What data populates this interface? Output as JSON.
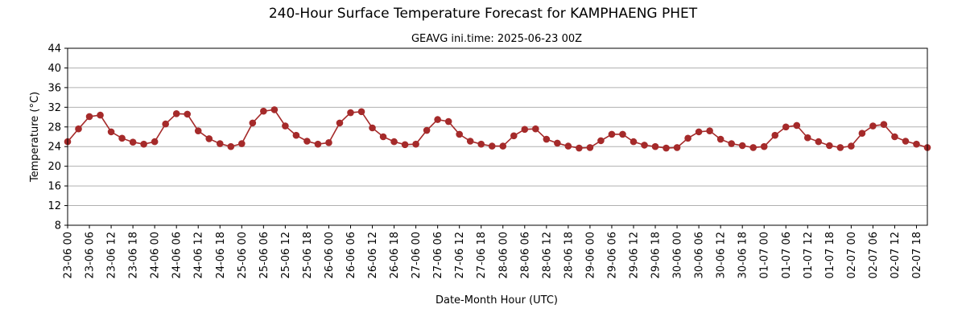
{
  "chart_data": {
    "type": "line",
    "title": "240-Hour Surface Temperature Forecast for KAMPHAENG PHET",
    "subtitle": "GEAVG ini.time: 2025-06-23 00Z",
    "xlabel": "Date-Month Hour (UTC)",
    "ylabel": "Temperature (°C)",
    "ylim": [
      8,
      44
    ],
    "yticks": [
      8,
      12,
      16,
      20,
      24,
      28,
      32,
      36,
      40,
      44
    ],
    "grid": "horizontal",
    "color": "#a52a2a",
    "x": [
      "23-06 00",
      "23-06 03",
      "23-06 06",
      "23-06 09",
      "23-06 12",
      "23-06 15",
      "23-06 18",
      "23-06 21",
      "24-06 00",
      "24-06 03",
      "24-06 06",
      "24-06 09",
      "24-06 12",
      "24-06 15",
      "24-06 18",
      "24-06 21",
      "25-06 00",
      "25-06 03",
      "25-06 06",
      "25-06 09",
      "25-06 12",
      "25-06 15",
      "25-06 18",
      "25-06 21",
      "26-06 00",
      "26-06 03",
      "26-06 06",
      "26-06 09",
      "26-06 12",
      "26-06 15",
      "26-06 18",
      "26-06 21",
      "27-06 00",
      "27-06 03",
      "27-06 06",
      "27-06 09",
      "27-06 12",
      "27-06 15",
      "27-06 18",
      "27-06 21",
      "28-06 00",
      "28-06 03",
      "28-06 06",
      "28-06 09",
      "28-06 12",
      "28-06 15",
      "28-06 18",
      "28-06 21",
      "29-06 00",
      "29-06 03",
      "29-06 06",
      "29-06 09",
      "29-06 12",
      "29-06 15",
      "29-06 18",
      "29-06 21",
      "30-06 00",
      "30-06 03",
      "30-06 06",
      "30-06 09",
      "30-06 12",
      "30-06 15",
      "30-06 18",
      "30-06 21",
      "01-07 00",
      "01-07 03",
      "01-07 06",
      "01-07 09",
      "01-07 12",
      "01-07 15",
      "01-07 18",
      "01-07 21",
      "02-07 00",
      "02-07 03",
      "02-07 06",
      "02-07 09",
      "02-07 12",
      "02-07 15",
      "02-07 18",
      "02-07 21"
    ],
    "xticks": [
      "23-06 00",
      "23-06 06",
      "23-06 12",
      "23-06 18",
      "24-06 00",
      "24-06 06",
      "24-06 12",
      "24-06 18",
      "25-06 00",
      "25-06 06",
      "25-06 12",
      "25-06 18",
      "26-06 00",
      "26-06 06",
      "26-06 12",
      "26-06 18",
      "27-06 00",
      "27-06 06",
      "27-06 12",
      "27-06 18",
      "28-06 00",
      "28-06 06",
      "28-06 12",
      "28-06 18",
      "29-06 00",
      "29-06 06",
      "29-06 12",
      "29-06 18",
      "30-06 00",
      "30-06 06",
      "30-06 12",
      "30-06 18",
      "01-07 00",
      "01-07 06",
      "01-07 12",
      "01-07 18",
      "02-07 00",
      "02-07 06",
      "02-07 12",
      "02-07 18"
    ],
    "series": [
      {
        "values": [
          25.0,
          27.6,
          30.1,
          30.4,
          27.0,
          25.7,
          24.9,
          24.5,
          25.0,
          28.6,
          30.7,
          30.6,
          27.2,
          25.6,
          24.6,
          24.0,
          24.6,
          28.8,
          31.2,
          31.5,
          28.2,
          26.3,
          25.1,
          24.5,
          24.8,
          28.8,
          30.9,
          31.1,
          27.8,
          26.0,
          25.0,
          24.4,
          24.5,
          27.3,
          29.5,
          29.1,
          26.5,
          25.1,
          24.5,
          24.1,
          24.1,
          26.2,
          27.5,
          27.6,
          25.5,
          24.7,
          24.1,
          23.7,
          23.8,
          25.2,
          26.5,
          26.5,
          25.0,
          24.3,
          24.0,
          23.7,
          23.8,
          25.7,
          27.0,
          27.2,
          25.5,
          24.6,
          24.2,
          23.8,
          24.0,
          26.3,
          28.0,
          28.3,
          25.8,
          25.0,
          24.2,
          23.8,
          24.1,
          26.7,
          28.2,
          28.5,
          26.0,
          25.1,
          24.5,
          23.8
        ]
      }
    ]
  }
}
